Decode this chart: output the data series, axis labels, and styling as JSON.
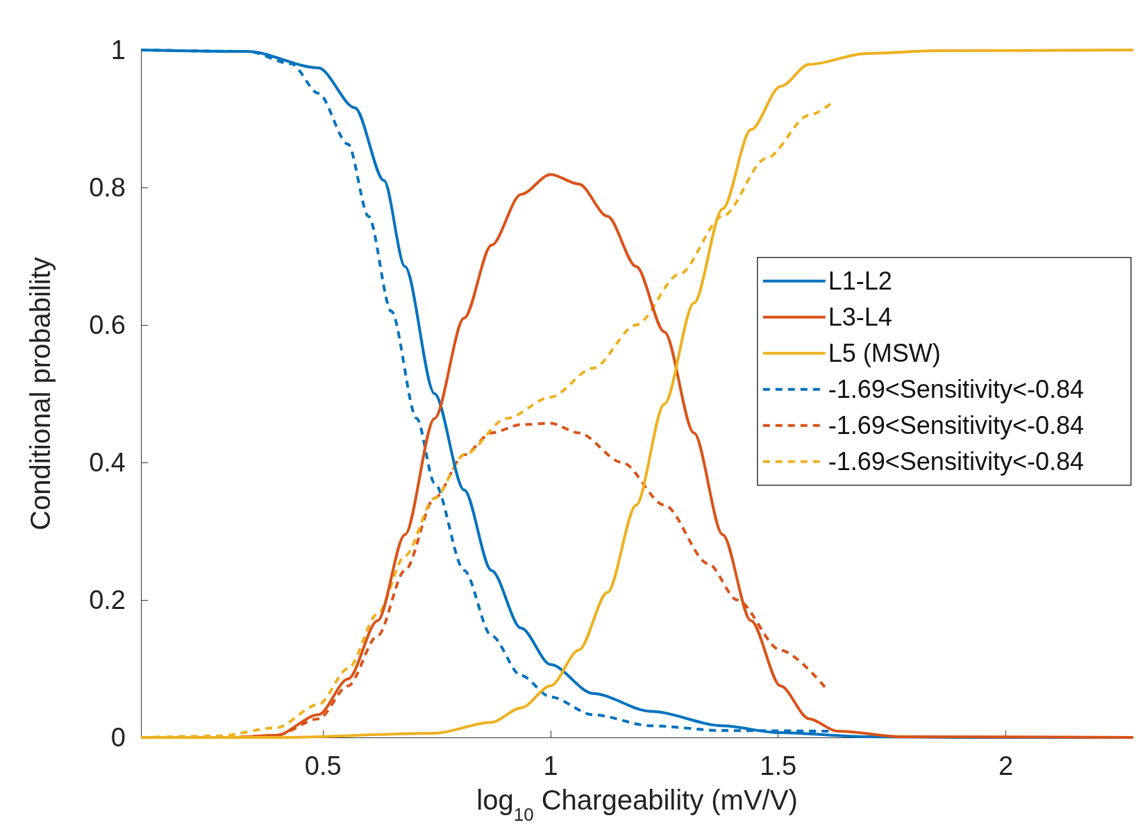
{
  "chart_data": {
    "type": "line",
    "xlabel": "log$_{10}$ Chargeability (mV/V)",
    "ylabel": "Conditional probability",
    "xlim": [
      0.1,
      2.28
    ],
    "xticks": [
      0.5,
      1,
      1.5,
      2
    ],
    "ylim": [
      0,
      1
    ],
    "yticks": [
      0,
      0.2,
      0.4,
      0.6,
      0.8,
      1
    ],
    "grid": false,
    "legend": "top right",
    "marker": "none",
    "series": [
      {
        "name": "L1-L2",
        "color": "#0072bd",
        "line_style": "solid",
        "x": [
          0.1,
          0.334,
          0.49,
          0.57,
          0.634,
          0.68,
          0.745,
          0.81,
          0.87,
          0.935,
          1.0,
          1.093,
          1.22,
          1.378,
          1.5,
          1.695,
          1.9,
          2.28
        ],
        "values": [
          1,
          0.998,
          0.974,
          0.916,
          0.81,
          0.685,
          0.5,
          0.36,
          0.243,
          0.159,
          0.106,
          0.064,
          0.038,
          0.017,
          0.007,
          0.001,
          0,
          0
        ]
      },
      {
        "name": "L3-L4",
        "color": "#d95319",
        "line_style": "solid",
        "x": [
          0.1,
          0.3,
          0.397,
          0.49,
          0.555,
          0.62,
          0.68,
          0.745,
          0.81,
          0.87,
          0.935,
          1.0,
          1.062,
          1.125,
          1.188,
          1.25,
          1.315,
          1.378,
          1.44,
          1.505,
          1.568,
          1.63,
          1.774,
          2.28
        ],
        "values": [
          0,
          0,
          0.003,
          0.033,
          0.085,
          0.17,
          0.295,
          0.464,
          0.61,
          0.716,
          0.79,
          0.819,
          0.805,
          0.758,
          0.685,
          0.59,
          0.443,
          0.295,
          0.17,
          0.075,
          0.027,
          0.009,
          0.001,
          0
        ]
      },
      {
        "name": "L5 (MSW)",
        "color": "#edb120",
        "line_style": "solid",
        "x": [
          0.1,
          0.4,
          0.745,
          0.87,
          0.935,
          1.0,
          1.062,
          1.125,
          1.188,
          1.25,
          1.315,
          1.378,
          1.44,
          1.505,
          1.568,
          1.695,
          1.853,
          2.28
        ],
        "values": [
          0,
          0,
          0.006,
          0.022,
          0.043,
          0.075,
          0.127,
          0.211,
          0.338,
          0.485,
          0.632,
          0.769,
          0.884,
          0.947,
          0.979,
          0.995,
          0.999,
          1
        ]
      },
      {
        "name": "-1.69<Sensitivity<-0.84",
        "color": "#0072bd",
        "line_style": "dashed",
        "x": [
          0.1,
          0.334,
          0.43,
          0.49,
          0.555,
          0.6,
          0.65,
          0.706,
          0.745,
          0.81,
          0.87,
          0.935,
          1.0,
          1.093,
          1.22,
          1.378,
          1.615
        ],
        "values": [
          1,
          0.998,
          0.98,
          0.937,
          0.863,
          0.758,
          0.62,
          0.464,
          0.37,
          0.243,
          0.148,
          0.09,
          0.059,
          0.033,
          0.017,
          0.01,
          0.009
        ]
      },
      {
        "name": "-1.69<Sensitivity<-0.84",
        "color": "#d95319",
        "line_style": "dashed",
        "x": [
          0.1,
          0.3,
          0.397,
          0.49,
          0.555,
          0.62,
          0.68,
          0.745,
          0.81,
          0.87,
          0.935,
          1.0,
          1.062,
          1.157,
          1.25,
          1.346,
          1.41,
          1.505,
          1.608
        ],
        "values": [
          0,
          0,
          0.003,
          0.027,
          0.075,
          0.148,
          0.243,
          0.348,
          0.411,
          0.443,
          0.455,
          0.457,
          0.443,
          0.4,
          0.338,
          0.253,
          0.2,
          0.127,
          0.069
        ]
      },
      {
        "name": "-1.69<Sensitivity<-0.84",
        "color": "#edb120",
        "line_style": "dashed",
        "x": [
          0.1,
          0.27,
          0.397,
          0.49,
          0.555,
          0.62,
          0.68,
          0.745,
          0.81,
          0.903,
          1.0,
          1.093,
          1.188,
          1.283,
          1.378,
          1.473,
          1.568,
          1.623
        ],
        "values": [
          0,
          0.002,
          0.014,
          0.048,
          0.1,
          0.18,
          0.264,
          0.348,
          0.411,
          0.464,
          0.495,
          0.537,
          0.6,
          0.674,
          0.758,
          0.842,
          0.905,
          0.926
        ]
      }
    ]
  }
}
